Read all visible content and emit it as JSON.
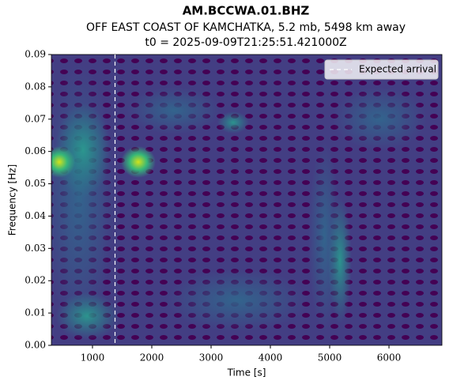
{
  "chart_data": {
    "type": "spectrogram",
    "title": "AM.BCCWA.01.BHZ",
    "subtitle": "OFF EAST COAST OF KAMCHATKA, 5.2 mb, 5498 km away",
    "subtitle2": "t0 = 2025-09-09T21:25:51.421000Z",
    "x_label": "Time [s]",
    "y_label": "Frequency [Hz]",
    "xlim": [
      307,
      6893
    ],
    "xticks": [
      1000,
      2000,
      3000,
      4000,
      5000,
      6000
    ],
    "ylim": [
      0,
      0.09
    ],
    "yticks": [
      {
        "value": 0,
        "label": "0.00"
      },
      {
        "value": 0.01,
        "label": "0.01"
      },
      {
        "value": 0.02,
        "label": "0.02"
      },
      {
        "value": 0.03,
        "label": "0.03"
      },
      {
        "value": 0.04,
        "label": "0.04"
      },
      {
        "value": 0.05,
        "label": "0.05"
      },
      {
        "value": 0.06,
        "label": "0.06"
      },
      {
        "value": 0.07,
        "label": "0.07"
      },
      {
        "value": 0.08,
        "label": "0.08"
      },
      {
        "value": 0.09,
        "label": "0.09"
      }
    ],
    "expected_arrival": 1380,
    "arrival_label": "Expected arrival",
    "arrival_color": "#ffffff",
    "legend": "upper right"
  }
}
